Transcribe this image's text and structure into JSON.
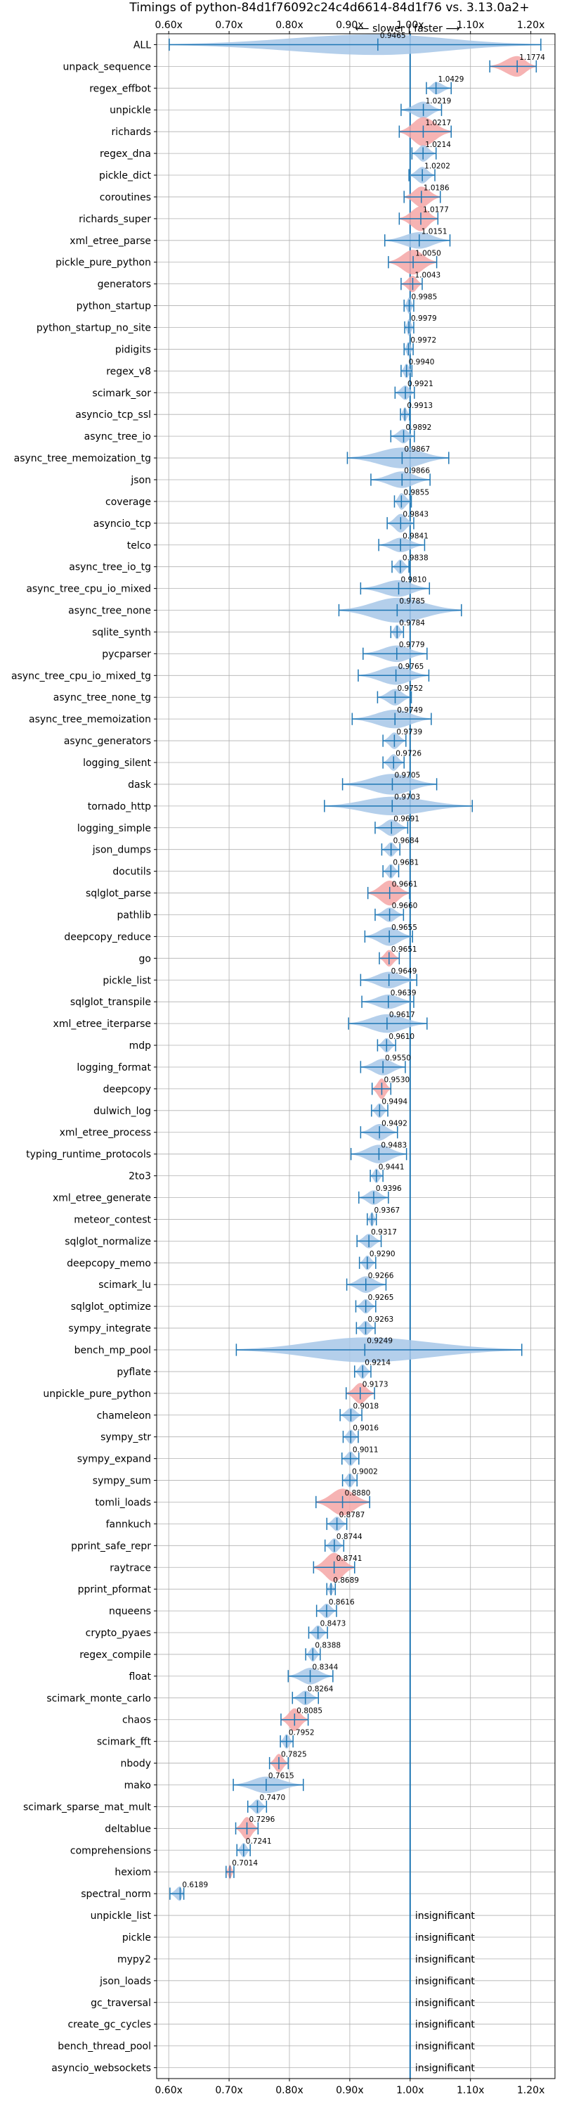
{
  "chart_data": {
    "type": "violin",
    "title": "Timings of python-84d1f76092c24c4d6614-84d1f76 vs. 3.13.0a2+",
    "direction_label": "⟵ slower | faster ⟶",
    "xlim": [
      0.58,
      1.24
    ],
    "x_ticks": [
      0.6,
      0.7,
      0.8,
      0.9,
      1.0,
      1.1,
      1.2
    ],
    "x_tick_labels": [
      "0.60x",
      "0.70x",
      "0.80x",
      "0.90x",
      "1.00x",
      "1.10x",
      "1.20x"
    ],
    "reference_line": 1.0,
    "grid": true,
    "colors": {
      "normal": "#a7c7e7",
      "highlight": "#f4a6a6",
      "line": "#1f77b4",
      "grid": "#b0b0b0"
    },
    "benchmarks": [
      {
        "name": "ALL",
        "value": 0.9465,
        "label": "0.9465",
        "lo": 0.6009,
        "hi": 1.2166,
        "width": 0.5,
        "shape": "long"
      },
      {
        "name": "unpack_sequence",
        "value": 1.1774,
        "label": "1.1774",
        "lo": 1.132,
        "hi": 1.209,
        "width": 0.5,
        "highlight": true
      },
      {
        "name": "regex_effbot",
        "value": 1.0429,
        "label": "1.0429",
        "lo": 1.027,
        "hi": 1.068,
        "width": 0.3
      },
      {
        "name": "unpickle",
        "value": 1.0219,
        "label": "1.0219",
        "lo": 0.985,
        "hi": 1.052,
        "width": 0.4
      },
      {
        "name": "richards",
        "value": 1.0217,
        "label": "1.0217",
        "lo": 0.982,
        "hi": 1.068,
        "width": 0.7,
        "highlight": true
      },
      {
        "name": "regex_dna",
        "value": 1.0214,
        "label": "1.0214",
        "lo": 1.003,
        "hi": 1.043,
        "width": 0.4
      },
      {
        "name": "pickle_dict",
        "value": 1.0202,
        "label": "1.0202",
        "lo": 0.998,
        "hi": 1.041,
        "width": 0.4
      },
      {
        "name": "coroutines",
        "value": 1.0186,
        "label": "1.0186",
        "lo": 0.99,
        "hi": 1.05,
        "width": 0.5,
        "highlight": true
      },
      {
        "name": "richards_super",
        "value": 1.0177,
        "label": "1.0177",
        "lo": 0.982,
        "hi": 1.046,
        "width": 0.6,
        "highlight": true
      },
      {
        "name": "xml_etree_parse",
        "value": 1.0151,
        "label": "1.0151",
        "lo": 0.958,
        "hi": 1.066,
        "width": 0.4
      },
      {
        "name": "pickle_pure_python",
        "value": 1.005,
        "label": "1.0050",
        "lo": 0.964,
        "hi": 1.044,
        "width": 0.6,
        "highlight": true
      },
      {
        "name": "generators",
        "value": 1.0043,
        "label": "1.0043",
        "lo": 0.985,
        "hi": 1.02,
        "width": 0.4,
        "highlight": true
      },
      {
        "name": "python_startup",
        "value": 0.9985,
        "label": "0.9985",
        "lo": 0.99,
        "hi": 1.006,
        "width": 0.4
      },
      {
        "name": "python_startup_no_site",
        "value": 0.9979,
        "label": "0.9979",
        "lo": 0.991,
        "hi": 1.006,
        "width": 0.4
      },
      {
        "name": "pidigits",
        "value": 0.9972,
        "label": "0.9972",
        "lo": 0.99,
        "hi": 1.005,
        "width": 0.35
      },
      {
        "name": "regex_v8",
        "value": 0.994,
        "label": "0.9940",
        "lo": 0.985,
        "hi": 1.003,
        "width": 0.35
      },
      {
        "name": "scimark_sor",
        "value": 0.9921,
        "label": "0.9921",
        "lo": 0.975,
        "hi": 1.007,
        "width": 0.35
      },
      {
        "name": "asyncio_tcp_ssl",
        "value": 0.9913,
        "label": "0.9913",
        "lo": 0.984,
        "hi": 0.999,
        "width": 0.35
      },
      {
        "name": "async_tree_io",
        "value": 0.9892,
        "label": "0.9892",
        "lo": 0.968,
        "hi": 1.007,
        "width": 0.35
      },
      {
        "name": "async_tree_memoization_tg",
        "value": 0.9867,
        "label": "0.9867",
        "lo": 0.896,
        "hi": 1.064,
        "width": 0.5
      },
      {
        "name": "json",
        "value": 0.9866,
        "label": "0.9866",
        "lo": 0.935,
        "hi": 1.033,
        "width": 0.4
      },
      {
        "name": "coverage",
        "value": 0.9855,
        "label": "0.9855",
        "lo": 0.974,
        "hi": 1.002,
        "width": 0.4
      },
      {
        "name": "asyncio_tcp",
        "value": 0.9843,
        "label": "0.9843",
        "lo": 0.962,
        "hi": 1.006,
        "width": 0.45
      },
      {
        "name": "telco",
        "value": 0.9841,
        "label": "0.9841",
        "lo": 0.948,
        "hi": 1.024,
        "width": 0.35
      },
      {
        "name": "async_tree_io_tg",
        "value": 0.9838,
        "label": "0.9838",
        "lo": 0.97,
        "hi": 0.998,
        "width": 0.35
      },
      {
        "name": "async_tree_cpu_io_mixed",
        "value": 0.981,
        "label": "0.9810",
        "lo": 0.918,
        "hi": 1.032,
        "width": 0.4
      },
      {
        "name": "async_tree_none",
        "value": 0.9785,
        "label": "0.9785",
        "lo": 0.882,
        "hi": 1.085,
        "width": 0.6
      },
      {
        "name": "sqlite_synth",
        "value": 0.9784,
        "label": "0.9784",
        "lo": 0.968,
        "hi": 0.989,
        "width": 0.35
      },
      {
        "name": "pycparser",
        "value": 0.9779,
        "label": "0.9779",
        "lo": 0.922,
        "hi": 1.028,
        "width": 0.4
      },
      {
        "name": "async_tree_cpu_io_mixed_tg",
        "value": 0.9765,
        "label": "0.9765",
        "lo": 0.914,
        "hi": 1.031,
        "width": 0.45
      },
      {
        "name": "async_tree_none_tg",
        "value": 0.9752,
        "label": "0.9752",
        "lo": 0.946,
        "hi": 1.002,
        "width": 0.4
      },
      {
        "name": "async_tree_memoization",
        "value": 0.9749,
        "label": "0.9749",
        "lo": 0.904,
        "hi": 1.035,
        "width": 0.45
      },
      {
        "name": "async_generators",
        "value": 0.9739,
        "label": "0.9739",
        "lo": 0.955,
        "hi": 0.993,
        "width": 0.4
      },
      {
        "name": "logging_silent",
        "value": 0.9726,
        "label": "0.9726",
        "lo": 0.955,
        "hi": 0.99,
        "width": 0.4
      },
      {
        "name": "dask",
        "value": 0.9705,
        "label": "0.9705",
        "lo": 0.888,
        "hi": 1.044,
        "width": 0.5
      },
      {
        "name": "tornado_http",
        "value": 0.9703,
        "label": "0.9703",
        "lo": 0.858,
        "hi": 1.103,
        "width": 0.45
      },
      {
        "name": "logging_simple",
        "value": 0.9691,
        "label": "0.9691",
        "lo": 0.942,
        "hi": 0.996,
        "width": 0.4
      },
      {
        "name": "json_dumps",
        "value": 0.9684,
        "label": "0.9684",
        "lo": 0.953,
        "hi": 0.983,
        "width": 0.35
      },
      {
        "name": "docutils",
        "value": 0.9681,
        "label": "0.9681",
        "lo": 0.955,
        "hi": 0.981,
        "width": 0.35
      },
      {
        "name": "sqlglot_parse",
        "value": 0.9661,
        "label": "0.9661",
        "lo": 0.93,
        "hi": 0.999,
        "width": 0.6,
        "highlight": true
      },
      {
        "name": "pathlib",
        "value": 0.966,
        "label": "0.9660",
        "lo": 0.942,
        "hi": 0.989,
        "width": 0.35
      },
      {
        "name": "deepcopy_reduce",
        "value": 0.9655,
        "label": "0.9655",
        "lo": 0.925,
        "hi": 1.004,
        "width": 0.45
      },
      {
        "name": "go",
        "value": 0.9651,
        "label": "0.9651",
        "lo": 0.949,
        "hi": 0.982,
        "width": 0.4,
        "highlight": true
      },
      {
        "name": "pickle_list",
        "value": 0.9649,
        "label": "0.9649",
        "lo": 0.918,
        "hi": 1.011,
        "width": 0.4
      },
      {
        "name": "sqlglot_transpile",
        "value": 0.9639,
        "label": "0.9639",
        "lo": 0.92,
        "hi": 1.006,
        "width": 0.35
      },
      {
        "name": "xml_etree_iterparse",
        "value": 0.9617,
        "label": "0.9617",
        "lo": 0.898,
        "hi": 1.028,
        "width": 0.45
      },
      {
        "name": "mdp",
        "value": 0.961,
        "label": "0.9610",
        "lo": 0.946,
        "hi": 0.976,
        "width": 0.35
      },
      {
        "name": "logging_format",
        "value": 0.955,
        "label": "0.9550",
        "lo": 0.918,
        "hi": 0.992,
        "width": 0.4
      },
      {
        "name": "deepcopy",
        "value": 0.953,
        "label": "0.9530",
        "lo": 0.937,
        "hi": 0.968,
        "width": 0.5,
        "highlight": true
      },
      {
        "name": "dulwich_log",
        "value": 0.9494,
        "label": "0.9494",
        "lo": 0.936,
        "hi": 0.963,
        "width": 0.35
      },
      {
        "name": "xml_etree_process",
        "value": 0.9492,
        "label": "0.9492",
        "lo": 0.918,
        "hi": 0.979,
        "width": 0.4
      },
      {
        "name": "typing_runtime_protocols",
        "value": 0.9483,
        "label": "0.9483",
        "lo": 0.902,
        "hi": 0.994,
        "width": 0.45
      },
      {
        "name": "2to3",
        "value": 0.9441,
        "label": "0.9441",
        "lo": 0.934,
        "hi": 0.955,
        "width": 0.35
      },
      {
        "name": "xml_etree_generate",
        "value": 0.9396,
        "label": "0.9396",
        "lo": 0.915,
        "hi": 0.964,
        "width": 0.35
      },
      {
        "name": "meteor_contest",
        "value": 0.9367,
        "label": "0.9367",
        "lo": 0.929,
        "hi": 0.944,
        "width": 0.35
      },
      {
        "name": "sqlglot_normalize",
        "value": 0.9317,
        "label": "0.9317",
        "lo": 0.912,
        "hi": 0.952,
        "width": 0.35
      },
      {
        "name": "deepcopy_memo",
        "value": 0.929,
        "label": "0.9290",
        "lo": 0.916,
        "hi": 0.943,
        "width": 0.35
      },
      {
        "name": "scimark_lu",
        "value": 0.9266,
        "label": "0.9266",
        "lo": 0.895,
        "hi": 0.96,
        "width": 0.4
      },
      {
        "name": "sqlglot_optimize",
        "value": 0.9265,
        "label": "0.9265",
        "lo": 0.91,
        "hi": 0.943,
        "width": 0.35
      },
      {
        "name": "sympy_integrate",
        "value": 0.9263,
        "label": "0.9263",
        "lo": 0.911,
        "hi": 0.942,
        "width": 0.35
      },
      {
        "name": "bench_mp_pool",
        "value": 0.9249,
        "label": "0.9249",
        "lo": 0.712,
        "hi": 1.185,
        "width": 0.6
      },
      {
        "name": "pyflate",
        "value": 0.9214,
        "label": "0.9214",
        "lo": 0.908,
        "hi": 0.935,
        "width": 0.35
      },
      {
        "name": "unpickle_pure_python",
        "value": 0.9173,
        "label": "0.9173",
        "lo": 0.894,
        "hi": 0.941,
        "width": 0.5,
        "highlight": true
      },
      {
        "name": "chameleon",
        "value": 0.9018,
        "label": "0.9018",
        "lo": 0.884,
        "hi": 0.92,
        "width": 0.35
      },
      {
        "name": "sympy_str",
        "value": 0.9016,
        "label": "0.9016",
        "lo": 0.889,
        "hi": 0.914,
        "width": 0.35
      },
      {
        "name": "sympy_expand",
        "value": 0.9011,
        "label": "0.9011",
        "lo": 0.887,
        "hi": 0.915,
        "width": 0.35
      },
      {
        "name": "sympy_sum",
        "value": 0.9002,
        "label": "0.9002",
        "lo": 0.888,
        "hi": 0.912,
        "width": 0.35
      },
      {
        "name": "tomli_loads",
        "value": 0.888,
        "label": "0.8880",
        "lo": 0.844,
        "hi": 0.933,
        "width": 0.65,
        "highlight": true
      },
      {
        "name": "fannkuch",
        "value": 0.8787,
        "label": "0.8787",
        "lo": 0.862,
        "hi": 0.895,
        "width": 0.35
      },
      {
        "name": "pprint_safe_repr",
        "value": 0.8744,
        "label": "0.8744",
        "lo": 0.859,
        "hi": 0.89,
        "width": 0.35
      },
      {
        "name": "raytrace",
        "value": 0.8741,
        "label": "0.8741",
        "lo": 0.84,
        "hi": 0.908,
        "width": 0.7,
        "highlight": true
      },
      {
        "name": "pprint_pformat",
        "value": 0.8689,
        "label": "0.8689",
        "lo": 0.862,
        "hi": 0.876,
        "width": 0.3
      },
      {
        "name": "nqueens",
        "value": 0.8616,
        "label": "0.8616",
        "lo": 0.845,
        "hi": 0.878,
        "width": 0.35
      },
      {
        "name": "crypto_pyaes",
        "value": 0.8473,
        "label": "0.8473",
        "lo": 0.832,
        "hi": 0.863,
        "width": 0.35
      },
      {
        "name": "regex_compile",
        "value": 0.8388,
        "label": "0.8388",
        "lo": 0.827,
        "hi": 0.851,
        "width": 0.35
      },
      {
        "name": "float",
        "value": 0.8344,
        "label": "0.8344",
        "lo": 0.798,
        "hi": 0.872,
        "width": 0.4
      },
      {
        "name": "scimark_monte_carlo",
        "value": 0.8264,
        "label": "0.8264",
        "lo": 0.805,
        "hi": 0.848,
        "width": 0.35
      },
      {
        "name": "chaos",
        "value": 0.8085,
        "label": "0.8085",
        "lo": 0.786,
        "hi": 0.831,
        "width": 0.55,
        "highlight": true
      },
      {
        "name": "scimark_fft",
        "value": 0.7952,
        "label": "0.7952",
        "lo": 0.785,
        "hi": 0.806,
        "width": 0.35
      },
      {
        "name": "nbody",
        "value": 0.7825,
        "label": "0.7825",
        "lo": 0.767,
        "hi": 0.798,
        "width": 0.45,
        "highlight": true
      },
      {
        "name": "mako",
        "value": 0.7615,
        "label": "0.7615",
        "lo": 0.707,
        "hi": 0.823,
        "width": 0.4
      },
      {
        "name": "scimark_sparse_mat_mult",
        "value": 0.747,
        "label": "0.7470",
        "lo": 0.731,
        "hi": 0.762,
        "width": 0.35
      },
      {
        "name": "deltablue",
        "value": 0.7296,
        "label": "0.7296",
        "lo": 0.711,
        "hi": 0.748,
        "width": 0.55,
        "highlight": true
      },
      {
        "name": "comprehensions",
        "value": 0.7241,
        "label": "0.7241",
        "lo": 0.713,
        "hi": 0.735,
        "width": 0.35
      },
      {
        "name": "hexiom",
        "value": 0.7014,
        "label": "0.7014",
        "lo": 0.695,
        "hi": 0.708,
        "width": 0.35,
        "highlight": true
      },
      {
        "name": "spectral_norm",
        "value": 0.6189,
        "label": "0.6189",
        "lo": 0.602,
        "hi": 0.625,
        "width": 0.35
      },
      {
        "name": "unpickle_list",
        "insignificant": true,
        "label": "insignificant"
      },
      {
        "name": "pickle",
        "insignificant": true,
        "label": "insignificant"
      },
      {
        "name": "mypy2",
        "insignificant": true,
        "label": "insignificant"
      },
      {
        "name": "json_loads",
        "insignificant": true,
        "label": "insignificant"
      },
      {
        "name": "gc_traversal",
        "insignificant": true,
        "label": "insignificant"
      },
      {
        "name": "create_gc_cycles",
        "insignificant": true,
        "label": "insignificant"
      },
      {
        "name": "bench_thread_pool",
        "insignificant": true,
        "label": "insignificant"
      },
      {
        "name": "asyncio_websockets",
        "insignificant": true,
        "label": "insignificant"
      }
    ]
  }
}
